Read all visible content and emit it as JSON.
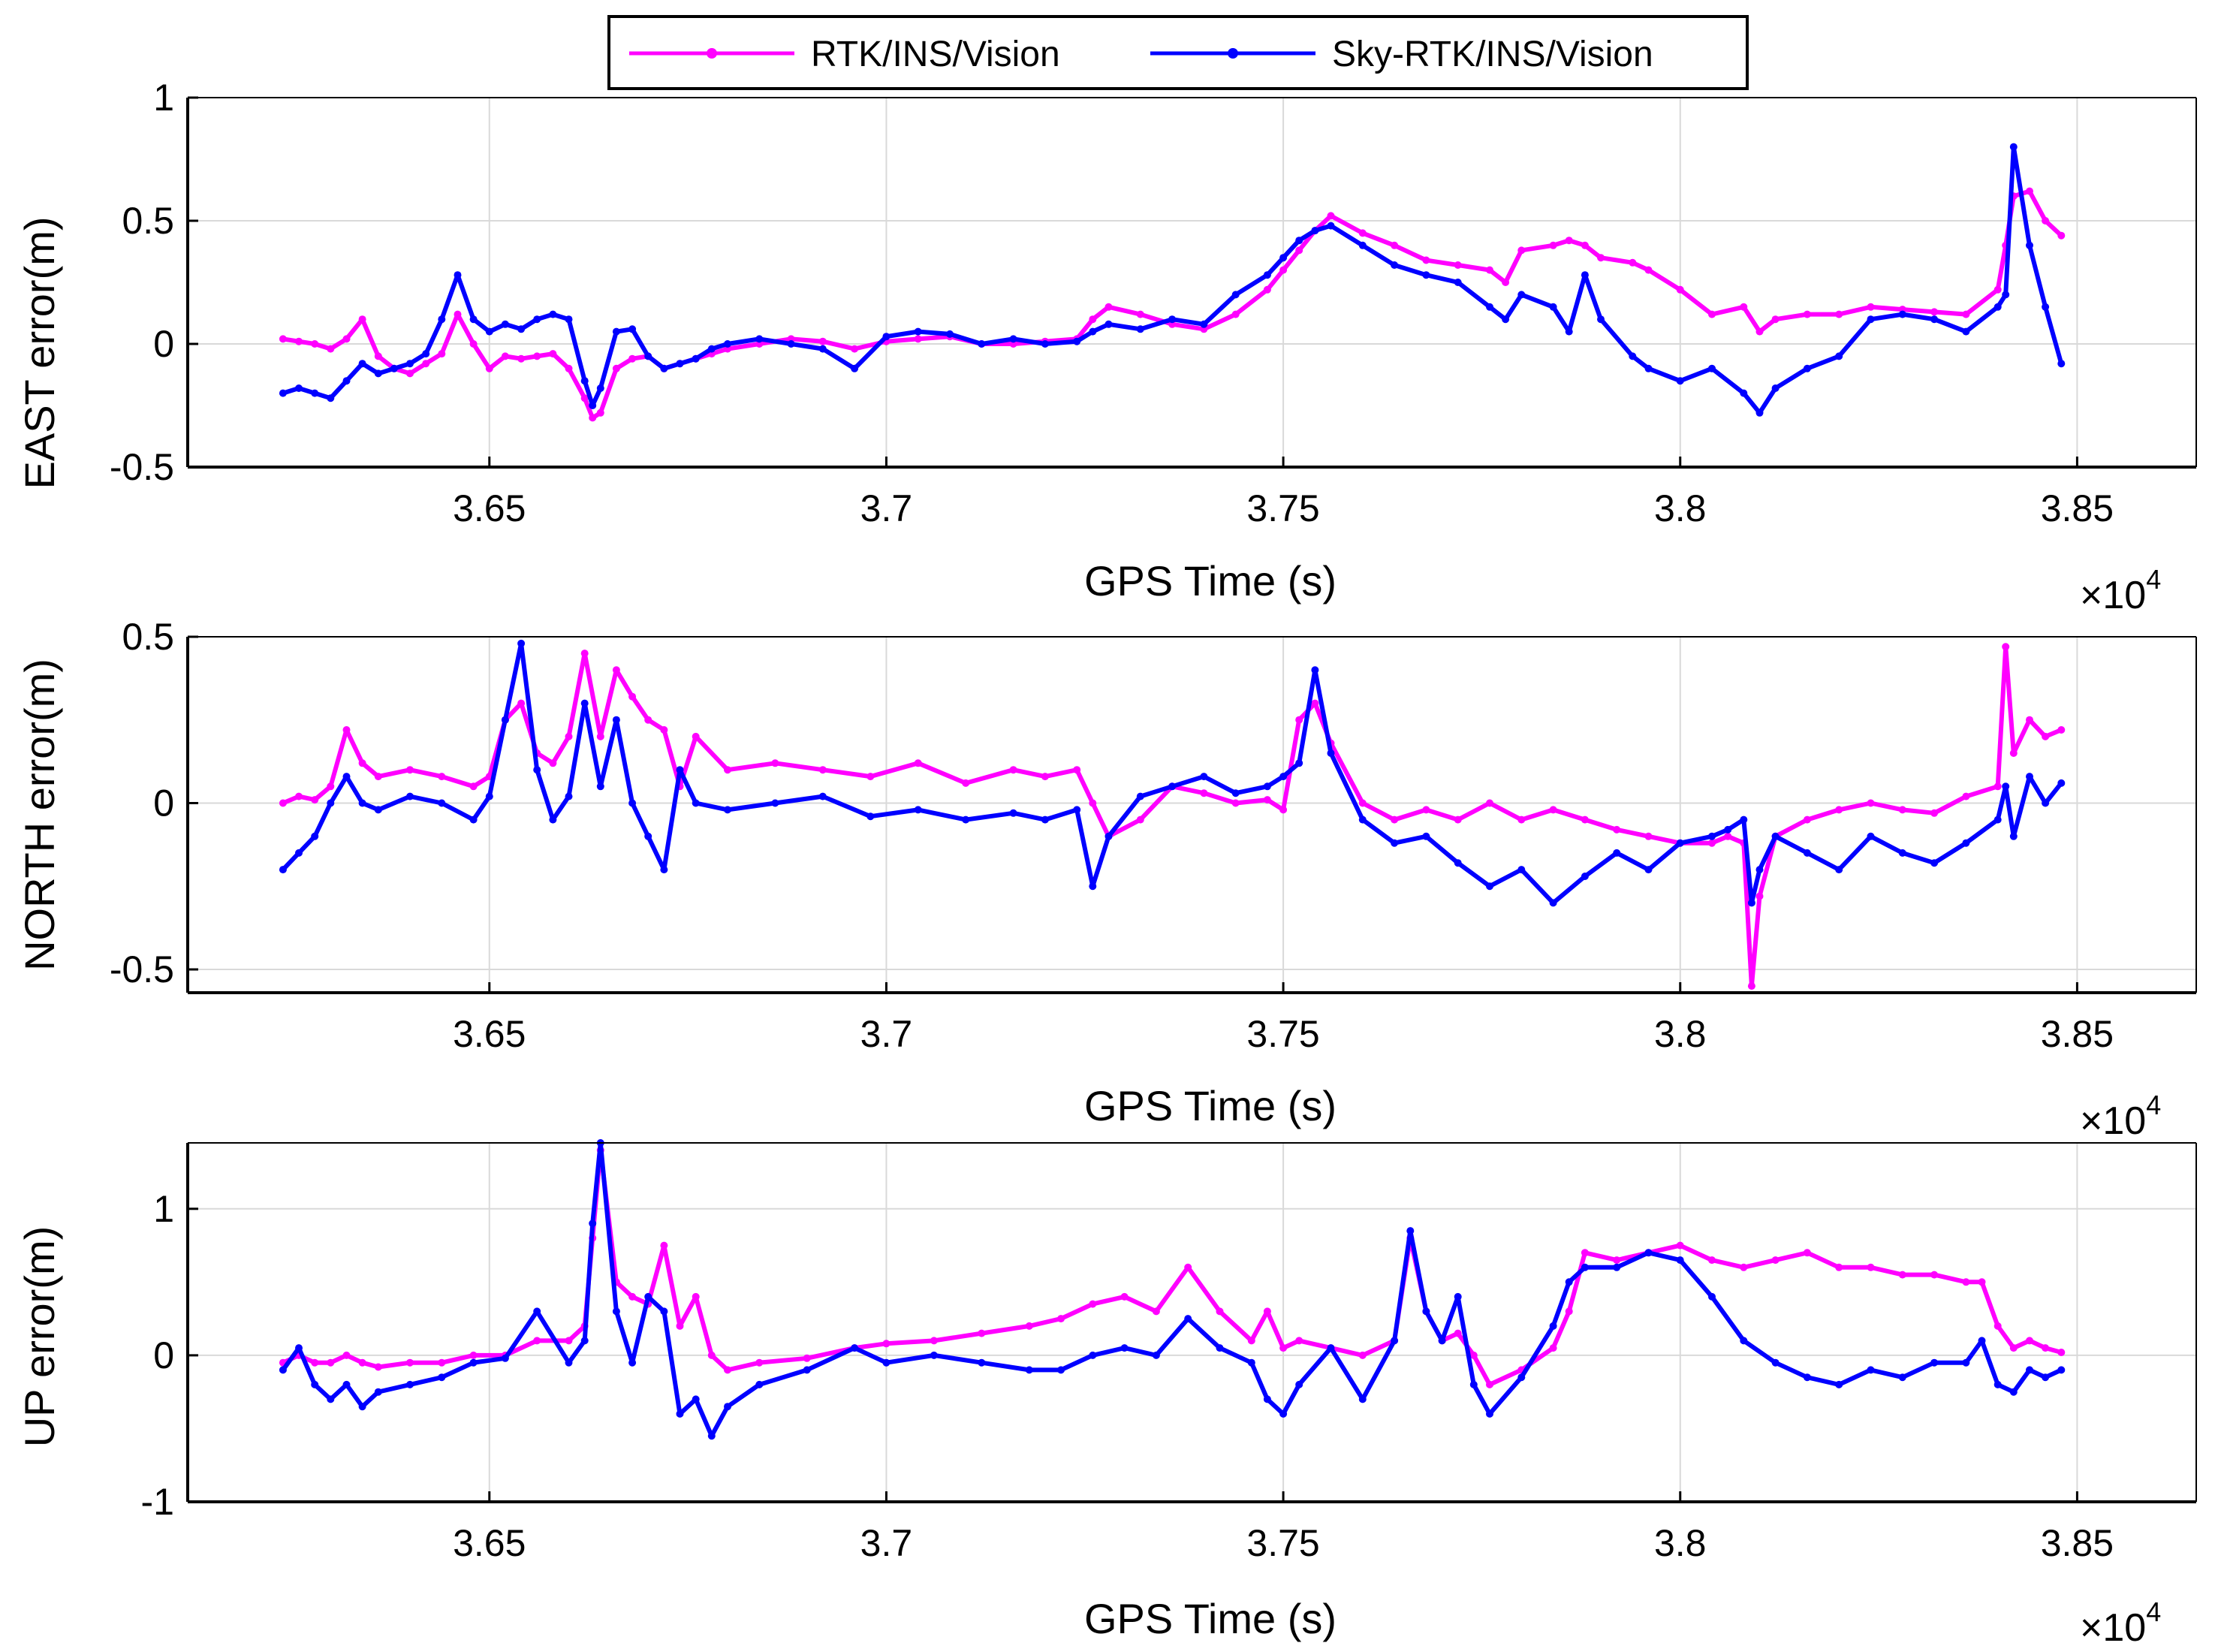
{
  "legend": {
    "entries": [
      {
        "name": "RTK/INS/Vision",
        "color": "#ff00ff"
      },
      {
        "name": "Sky-RTK/INS/Vision",
        "color": "#0000ff"
      }
    ]
  },
  "chart_data": [
    {
      "type": "line",
      "title": "",
      "xlabel": "GPS Time (s)",
      "ylabel": "EAST error(m)",
      "xlim": [
        3.612,
        3.865
      ],
      "ylim": [
        -0.5,
        1
      ],
      "xticks": [
        3.65,
        3.7,
        3.75,
        3.8,
        3.85
      ],
      "xtick_labels": [
        "3.65",
        "3.7",
        "3.75",
        "3.8",
        "3.85"
      ],
      "yticks": [
        -0.5,
        0,
        0.5,
        1
      ],
      "ytick_labels": [
        "-0.5",
        "0",
        "0.5",
        "1"
      ],
      "x_exponent_base": "×10",
      "x_exponent": "4",
      "grid": true,
      "series": [
        {
          "name": "RTK/INS/Vision",
          "x": [
            3.624,
            3.626,
            3.628,
            3.63,
            3.632,
            3.634,
            3.636,
            3.638,
            3.64,
            3.642,
            3.644,
            3.646,
            3.648,
            3.65,
            3.652,
            3.654,
            3.656,
            3.658,
            3.66,
            3.662,
            3.663,
            3.664,
            3.666,
            3.668,
            3.67,
            3.672,
            3.674,
            3.676,
            3.678,
            3.68,
            3.684,
            3.688,
            3.692,
            3.696,
            3.7,
            3.704,
            3.708,
            3.712,
            3.716,
            3.72,
            3.724,
            3.726,
            3.728,
            3.732,
            3.736,
            3.74,
            3.744,
            3.748,
            3.75,
            3.752,
            3.754,
            3.756,
            3.76,
            3.764,
            3.768,
            3.772,
            3.776,
            3.778,
            3.78,
            3.784,
            3.786,
            3.788,
            3.79,
            3.794,
            3.796,
            3.8,
            3.804,
            3.808,
            3.81,
            3.812,
            3.816,
            3.82,
            3.824,
            3.828,
            3.832,
            3.836,
            3.84,
            3.841,
            3.842,
            3.844,
            3.846,
            3.848
          ],
          "y": [
            0.02,
            0.01,
            0.0,
            -0.02,
            0.02,
            0.1,
            -0.05,
            -0.1,
            -0.12,
            -0.08,
            -0.04,
            0.12,
            0.0,
            -0.1,
            -0.05,
            -0.06,
            -0.05,
            -0.04,
            -0.1,
            -0.22,
            -0.3,
            -0.28,
            -0.1,
            -0.06,
            -0.05,
            -0.1,
            -0.08,
            -0.06,
            -0.04,
            -0.02,
            0.0,
            0.02,
            0.01,
            -0.02,
            0.01,
            0.02,
            0.03,
            0.0,
            0.0,
            0.01,
            0.02,
            0.1,
            0.15,
            0.12,
            0.08,
            0.06,
            0.12,
            0.22,
            0.3,
            0.38,
            0.46,
            0.52,
            0.45,
            0.4,
            0.34,
            0.32,
            0.3,
            0.25,
            0.38,
            0.4,
            0.42,
            0.4,
            0.35,
            0.33,
            0.3,
            0.22,
            0.12,
            0.15,
            0.05,
            0.1,
            0.12,
            0.12,
            0.15,
            0.14,
            0.13,
            0.12,
            0.22,
            0.4,
            0.6,
            0.62,
            0.5,
            0.44
          ]
        },
        {
          "name": "Sky-RTK/INS/Vision",
          "x": [
            3.624,
            3.626,
            3.628,
            3.63,
            3.632,
            3.634,
            3.636,
            3.638,
            3.64,
            3.642,
            3.644,
            3.646,
            3.648,
            3.65,
            3.652,
            3.654,
            3.656,
            3.658,
            3.66,
            3.662,
            3.663,
            3.664,
            3.666,
            3.668,
            3.67,
            3.672,
            3.674,
            3.676,
            3.678,
            3.68,
            3.684,
            3.688,
            3.692,
            3.696,
            3.7,
            3.704,
            3.708,
            3.712,
            3.716,
            3.72,
            3.724,
            3.726,
            3.728,
            3.732,
            3.736,
            3.74,
            3.744,
            3.748,
            3.75,
            3.752,
            3.754,
            3.756,
            3.76,
            3.764,
            3.768,
            3.772,
            3.776,
            3.778,
            3.78,
            3.784,
            3.786,
            3.788,
            3.79,
            3.794,
            3.796,
            3.8,
            3.804,
            3.808,
            3.81,
            3.812,
            3.816,
            3.82,
            3.824,
            3.828,
            3.832,
            3.836,
            3.84,
            3.841,
            3.842,
            3.844,
            3.846,
            3.848
          ],
          "y": [
            -0.2,
            -0.18,
            -0.2,
            -0.22,
            -0.15,
            -0.08,
            -0.12,
            -0.1,
            -0.08,
            -0.04,
            0.1,
            0.28,
            0.1,
            0.05,
            0.08,
            0.06,
            0.1,
            0.12,
            0.1,
            -0.15,
            -0.25,
            -0.18,
            0.05,
            0.06,
            -0.05,
            -0.1,
            -0.08,
            -0.06,
            -0.02,
            0.0,
            0.02,
            0.0,
            -0.02,
            -0.1,
            0.03,
            0.05,
            0.04,
            0.0,
            0.02,
            0.0,
            0.01,
            0.05,
            0.08,
            0.06,
            0.1,
            0.08,
            0.2,
            0.28,
            0.35,
            0.42,
            0.46,
            0.48,
            0.4,
            0.32,
            0.28,
            0.25,
            0.15,
            0.1,
            0.2,
            0.15,
            0.05,
            0.28,
            0.1,
            -0.05,
            -0.1,
            -0.15,
            -0.1,
            -0.2,
            -0.28,
            -0.18,
            -0.1,
            -0.05,
            0.1,
            0.12,
            0.1,
            0.05,
            0.15,
            0.2,
            0.8,
            0.4,
            0.15,
            -0.08
          ]
        }
      ]
    },
    {
      "type": "line",
      "title": "",
      "xlabel": "GPS Time (s)",
      "ylabel": "NORTH error(m)",
      "xlim": [
        3.612,
        3.865
      ],
      "ylim": [
        -0.57,
        0.5
      ],
      "xticks": [
        3.65,
        3.7,
        3.75,
        3.8,
        3.85
      ],
      "xtick_labels": [
        "3.65",
        "3.7",
        "3.75",
        "3.8",
        "3.85"
      ],
      "yticks": [
        -0.5,
        0,
        0.5
      ],
      "ytick_labels": [
        "-0.5",
        "0",
        "0.5"
      ],
      "x_exponent_base": "×10",
      "x_exponent": "4",
      "grid": true,
      "series": [
        {
          "name": "RTK/INS/Vision",
          "x": [
            3.624,
            3.626,
            3.628,
            3.63,
            3.632,
            3.634,
            3.636,
            3.64,
            3.644,
            3.648,
            3.65,
            3.652,
            3.654,
            3.656,
            3.658,
            3.66,
            3.662,
            3.664,
            3.666,
            3.668,
            3.67,
            3.672,
            3.674,
            3.676,
            3.68,
            3.686,
            3.692,
            3.698,
            3.704,
            3.71,
            3.716,
            3.72,
            3.724,
            3.726,
            3.728,
            3.732,
            3.736,
            3.74,
            3.744,
            3.748,
            3.75,
            3.752,
            3.754,
            3.756,
            3.76,
            3.764,
            3.768,
            3.772,
            3.776,
            3.78,
            3.784,
            3.788,
            3.792,
            3.796,
            3.8,
            3.804,
            3.806,
            3.808,
            3.809,
            3.81,
            3.812,
            3.816,
            3.82,
            3.824,
            3.828,
            3.832,
            3.836,
            3.84,
            3.841,
            3.842,
            3.844,
            3.846,
            3.848
          ],
          "y": [
            0.0,
            0.02,
            0.01,
            0.05,
            0.22,
            0.12,
            0.08,
            0.1,
            0.08,
            0.05,
            0.08,
            0.25,
            0.3,
            0.15,
            0.12,
            0.2,
            0.45,
            0.2,
            0.4,
            0.32,
            0.25,
            0.22,
            0.05,
            0.2,
            0.1,
            0.12,
            0.1,
            0.08,
            0.12,
            0.06,
            0.1,
            0.08,
            0.1,
            0.0,
            -0.1,
            -0.05,
            0.05,
            0.03,
            0.0,
            0.01,
            -0.02,
            0.25,
            0.3,
            0.18,
            0.0,
            -0.05,
            -0.02,
            -0.05,
            0.0,
            -0.05,
            -0.02,
            -0.05,
            -0.08,
            -0.1,
            -0.12,
            -0.12,
            -0.1,
            -0.12,
            -0.55,
            -0.28,
            -0.1,
            -0.05,
            -0.02,
            0.0,
            -0.02,
            -0.03,
            0.02,
            0.05,
            0.47,
            0.15,
            0.25,
            0.2,
            0.22
          ]
        },
        {
          "name": "Sky-RTK/INS/Vision",
          "x": [
            3.624,
            3.626,
            3.628,
            3.63,
            3.632,
            3.634,
            3.636,
            3.64,
            3.644,
            3.648,
            3.65,
            3.652,
            3.654,
            3.656,
            3.658,
            3.66,
            3.662,
            3.664,
            3.666,
            3.668,
            3.67,
            3.672,
            3.674,
            3.676,
            3.68,
            3.686,
            3.692,
            3.698,
            3.704,
            3.71,
            3.716,
            3.72,
            3.724,
            3.726,
            3.728,
            3.732,
            3.736,
            3.74,
            3.744,
            3.748,
            3.75,
            3.752,
            3.754,
            3.756,
            3.76,
            3.764,
            3.768,
            3.772,
            3.776,
            3.78,
            3.784,
            3.788,
            3.792,
            3.796,
            3.8,
            3.804,
            3.806,
            3.808,
            3.809,
            3.81,
            3.812,
            3.816,
            3.82,
            3.824,
            3.828,
            3.832,
            3.836,
            3.84,
            3.841,
            3.842,
            3.844,
            3.846,
            3.848
          ],
          "y": [
            -0.2,
            -0.15,
            -0.1,
            0.0,
            0.08,
            0.0,
            -0.02,
            0.02,
            0.0,
            -0.05,
            0.02,
            0.25,
            0.48,
            0.1,
            -0.05,
            0.02,
            0.3,
            0.05,
            0.25,
            0.0,
            -0.1,
            -0.2,
            0.1,
            0.0,
            -0.02,
            0.0,
            0.02,
            -0.04,
            -0.02,
            -0.05,
            -0.03,
            -0.05,
            -0.02,
            -0.25,
            -0.1,
            0.02,
            0.05,
            0.08,
            0.03,
            0.05,
            0.08,
            0.12,
            0.4,
            0.15,
            -0.05,
            -0.12,
            -0.1,
            -0.18,
            -0.25,
            -0.2,
            -0.3,
            -0.22,
            -0.15,
            -0.2,
            -0.12,
            -0.1,
            -0.08,
            -0.05,
            -0.3,
            -0.2,
            -0.1,
            -0.15,
            -0.2,
            -0.1,
            -0.15,
            -0.18,
            -0.12,
            -0.05,
            0.05,
            -0.1,
            0.08,
            0.0,
            0.06
          ]
        }
      ]
    },
    {
      "type": "line",
      "title": "",
      "xlabel": "GPS Time (s)",
      "ylabel": "UP error(m)",
      "xlim": [
        3.612,
        3.865
      ],
      "ylim": [
        -1,
        1.45
      ],
      "xticks": [
        3.65,
        3.7,
        3.75,
        3.8,
        3.85
      ],
      "xtick_labels": [
        "3.65",
        "3.7",
        "3.75",
        "3.8",
        "3.85"
      ],
      "yticks": [
        -1,
        0,
        1
      ],
      "ytick_labels": [
        "-1",
        "0",
        "1"
      ],
      "x_exponent_base": "×10",
      "x_exponent": "4",
      "grid": true,
      "series": [
        {
          "name": "RTK/INS/Vision",
          "x": [
            3.624,
            3.626,
            3.628,
            3.63,
            3.632,
            3.634,
            3.636,
            3.64,
            3.644,
            3.648,
            3.652,
            3.656,
            3.66,
            3.662,
            3.663,
            3.664,
            3.666,
            3.668,
            3.67,
            3.672,
            3.674,
            3.676,
            3.678,
            3.68,
            3.684,
            3.69,
            3.696,
            3.7,
            3.706,
            3.712,
            3.718,
            3.722,
            3.726,
            3.73,
            3.734,
            3.738,
            3.742,
            3.746,
            3.748,
            3.75,
            3.752,
            3.756,
            3.76,
            3.764,
            3.766,
            3.768,
            3.77,
            3.772,
            3.774,
            3.776,
            3.78,
            3.784,
            3.786,
            3.788,
            3.792,
            3.796,
            3.8,
            3.804,
            3.808,
            3.812,
            3.816,
            3.82,
            3.824,
            3.828,
            3.832,
            3.836,
            3.838,
            3.84,
            3.842,
            3.844,
            3.846,
            3.848
          ],
          "y": [
            -0.05,
            0.0,
            -0.05,
            -0.05,
            0.0,
            -0.05,
            -0.08,
            -0.05,
            -0.05,
            0.0,
            0.0,
            0.1,
            0.1,
            0.2,
            0.8,
            1.4,
            0.5,
            0.4,
            0.35,
            0.75,
            0.2,
            0.4,
            0.0,
            -0.1,
            -0.05,
            -0.02,
            0.05,
            0.08,
            0.1,
            0.15,
            0.2,
            0.25,
            0.35,
            0.4,
            0.3,
            0.6,
            0.3,
            0.1,
            0.3,
            0.05,
            0.1,
            0.05,
            0.0,
            0.1,
            0.8,
            0.3,
            0.1,
            0.15,
            0.0,
            -0.2,
            -0.1,
            0.05,
            0.3,
            0.7,
            0.65,
            0.7,
            0.75,
            0.65,
            0.6,
            0.65,
            0.7,
            0.6,
            0.6,
            0.55,
            0.55,
            0.5,
            0.5,
            0.2,
            0.05,
            0.1,
            0.05,
            0.02
          ]
        },
        {
          "name": "Sky-RTK/INS/Vision",
          "x": [
            3.624,
            3.626,
            3.628,
            3.63,
            3.632,
            3.634,
            3.636,
            3.64,
            3.644,
            3.648,
            3.652,
            3.656,
            3.66,
            3.662,
            3.663,
            3.664,
            3.666,
            3.668,
            3.67,
            3.672,
            3.674,
            3.676,
            3.678,
            3.68,
            3.684,
            3.69,
            3.696,
            3.7,
            3.706,
            3.712,
            3.718,
            3.722,
            3.726,
            3.73,
            3.734,
            3.738,
            3.742,
            3.746,
            3.748,
            3.75,
            3.752,
            3.756,
            3.76,
            3.764,
            3.766,
            3.768,
            3.77,
            3.772,
            3.774,
            3.776,
            3.78,
            3.784,
            3.786,
            3.788,
            3.792,
            3.796,
            3.8,
            3.804,
            3.808,
            3.812,
            3.816,
            3.82,
            3.824,
            3.828,
            3.832,
            3.836,
            3.838,
            3.84,
            3.842,
            3.844,
            3.846,
            3.848
          ],
          "y": [
            -0.1,
            0.05,
            -0.2,
            -0.3,
            -0.2,
            -0.35,
            -0.25,
            -0.2,
            -0.15,
            -0.05,
            -0.02,
            0.3,
            -0.05,
            0.1,
            0.9,
            1.45,
            0.3,
            -0.05,
            0.4,
            0.3,
            -0.4,
            -0.3,
            -0.55,
            -0.35,
            -0.2,
            -0.1,
            0.05,
            -0.05,
            0.0,
            -0.05,
            -0.1,
            -0.1,
            0.0,
            0.05,
            0.0,
            0.25,
            0.05,
            -0.05,
            -0.3,
            -0.4,
            -0.2,
            0.05,
            -0.3,
            0.1,
            0.85,
            0.3,
            0.1,
            0.4,
            -0.2,
            -0.4,
            -0.15,
            0.2,
            0.5,
            0.6,
            0.6,
            0.7,
            0.65,
            0.4,
            0.1,
            -0.05,
            -0.15,
            -0.2,
            -0.1,
            -0.15,
            -0.05,
            -0.05,
            0.1,
            -0.2,
            -0.25,
            -0.1,
            -0.15,
            -0.1
          ]
        }
      ]
    }
  ]
}
